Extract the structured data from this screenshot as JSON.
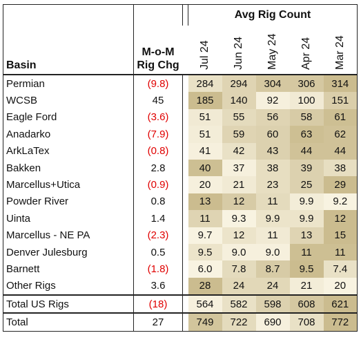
{
  "header": {
    "basin_label": "Basin",
    "mom_label_line1": "M-o-M",
    "mom_label_line2": "Rig Chg",
    "avg_label": "Avg Rig Count",
    "months": [
      "Jul 24",
      "Jun 24",
      "May 24",
      "Apr 24",
      "Mar 24"
    ]
  },
  "colors": {
    "negative_text": "#e00000",
    "heat_light": "#fbf6e6",
    "heat_dark": "#c8b98a"
  },
  "rows": [
    {
      "basin": "Permian",
      "mom": "(9.8)",
      "neg": true,
      "values": [
        "284",
        "294",
        "304",
        "306",
        "314"
      ],
      "shade": [
        0.35,
        0.55,
        0.75,
        0.75,
        0.95
      ]
    },
    {
      "basin": "WCSB",
      "mom": "45",
      "neg": false,
      "values": [
        "185",
        "140",
        "92",
        "100",
        "151"
      ],
      "shade": [
        0.95,
        0.55,
        0.1,
        0.2,
        0.65
      ]
    },
    {
      "basin": "Eagle Ford",
      "mom": "(3.6)",
      "neg": true,
      "values": [
        "51",
        "55",
        "56",
        "58",
        "61"
      ],
      "shade": [
        0.2,
        0.45,
        0.55,
        0.7,
        0.9
      ]
    },
    {
      "basin": "Anadarko",
      "mom": "(7.9)",
      "neg": true,
      "values": [
        "51",
        "59",
        "60",
        "63",
        "62"
      ],
      "shade": [
        0.15,
        0.55,
        0.6,
        0.9,
        0.85
      ]
    },
    {
      "basin": "ArkLaTex",
      "mom": "(0.8)",
      "neg": true,
      "values": [
        "41",
        "42",
        "43",
        "44",
        "44"
      ],
      "shade": [
        0.1,
        0.35,
        0.6,
        0.85,
        0.85
      ]
    },
    {
      "basin": "Bakken",
      "mom": "2.8",
      "neg": false,
      "values": [
        "40",
        "37",
        "38",
        "39",
        "38"
      ],
      "shade": [
        0.9,
        0.1,
        0.4,
        0.6,
        0.4
      ]
    },
    {
      "basin": "Marcellus+Utica",
      "mom": "(0.9)",
      "neg": true,
      "values": [
        "20",
        "21",
        "23",
        "25",
        "29"
      ],
      "shade": [
        0.1,
        0.2,
        0.4,
        0.6,
        0.95
      ]
    },
    {
      "basin": "Powder River",
      "mom": "0.8",
      "neg": false,
      "values": [
        "13",
        "12",
        "11",
        "9.9",
        "9.2"
      ],
      "shade": [
        0.95,
        0.7,
        0.45,
        0.15,
        0.05
      ]
    },
    {
      "basin": "Uinta",
      "mom": "1.4",
      "neg": false,
      "values": [
        "11",
        "9.3",
        "9.9",
        "9.9",
        "12"
      ],
      "shade": [
        0.55,
        0.05,
        0.3,
        0.3,
        0.95
      ]
    },
    {
      "basin": "Marcellus - NE PA",
      "mom": "(2.3)",
      "neg": true,
      "values": [
        "9.7",
        "12",
        "11",
        "13",
        "15"
      ],
      "shade": [
        0.05,
        0.3,
        0.2,
        0.55,
        0.95
      ]
    },
    {
      "basin": "Denver Julesburg",
      "mom": "0.5",
      "neg": false,
      "values": [
        "9.5",
        "9.0",
        "9.0",
        "11",
        "11"
      ],
      "shade": [
        0.3,
        0.1,
        0.1,
        0.9,
        0.9
      ]
    },
    {
      "basin": "Barnett",
      "mom": "(1.8)",
      "neg": true,
      "values": [
        "6.0",
        "7.8",
        "8.7",
        "9.5",
        "7.4"
      ],
      "shade": [
        0.05,
        0.45,
        0.7,
        0.95,
        0.35
      ]
    },
    {
      "basin": "Other Rigs",
      "mom": "3.6",
      "neg": false,
      "values": [
        "28",
        "24",
        "24",
        "21",
        "20"
      ],
      "shade": [
        0.95,
        0.5,
        0.5,
        0.15,
        0.05
      ]
    }
  ],
  "total_us": {
    "basin": "Total US Rigs",
    "mom": "(18)",
    "neg": true,
    "values": [
      "564",
      "582",
      "598",
      "608",
      "621"
    ],
    "shade": [
      0.1,
      0.35,
      0.6,
      0.75,
      0.95
    ]
  },
  "total": {
    "basin": "Total",
    "mom": "27",
    "neg": false,
    "values": [
      "749",
      "722",
      "690",
      "708",
      "772"
    ],
    "shade": [
      0.8,
      0.45,
      0.1,
      0.35,
      0.95
    ]
  }
}
